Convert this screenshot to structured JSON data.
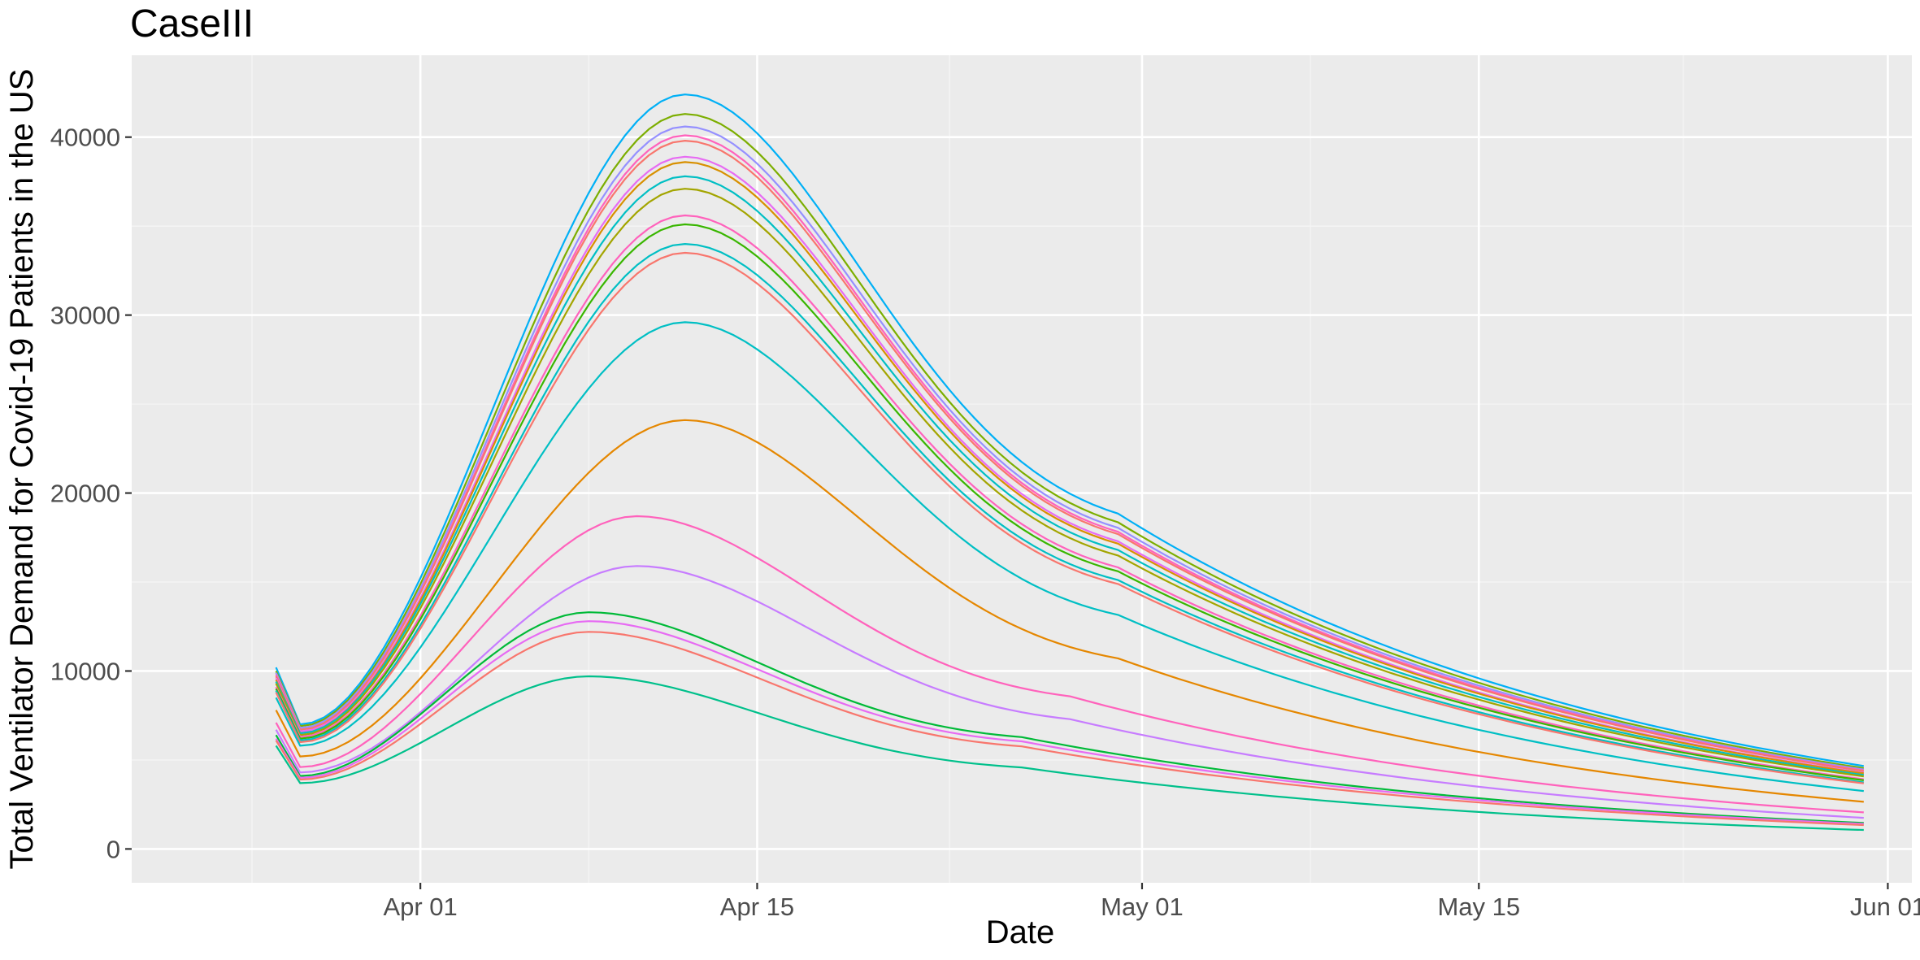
{
  "chart_data": {
    "type": "line",
    "title": "CaseIII",
    "xlabel": "Date",
    "ylabel": "Total Ventilator Demand for Covid-19 Patients in the US",
    "x_domain": [
      "2020-03-20",
      "2020-06-02"
    ],
    "ylim": [
      -1900,
      44600
    ],
    "x_ticks": [
      {
        "date": "2020-04-01",
        "label": "Apr 01"
      },
      {
        "date": "2020-04-15",
        "label": "Apr 15"
      },
      {
        "date": "2020-05-01",
        "label": "May 01"
      },
      {
        "date": "2020-05-15",
        "label": "May 15"
      },
      {
        "date": "2020-06-01",
        "label": "Jun 01"
      }
    ],
    "y_ticks": [
      0,
      10000,
      20000,
      30000,
      40000
    ],
    "grid": true,
    "legend": "none",
    "colors": {
      "panel_background": "#EBEBEB",
      "grid_major": "#FFFFFF",
      "grid_minor": "#F5F5F5",
      "axis_text": "#4D4D4D"
    },
    "series_style": "One line per scenario; 21 series, no legend.",
    "series": [
      {
        "color": "#00B0F6",
        "start": 10200,
        "dip": 7000,
        "peak": 42400
      },
      {
        "color": "#7CAE00",
        "start": 10000,
        "dip": 6900,
        "peak": 41300
      },
      {
        "color": "#9590FF",
        "start": 9900,
        "dip": 6800,
        "peak": 40600
      },
      {
        "color": "#FF62BC",
        "start": 9800,
        "dip": 6700,
        "peak": 40100
      },
      {
        "color": "#F8766D",
        "start": 9700,
        "dip": 6700,
        "peak": 39800
      },
      {
        "color": "#E76BF3",
        "start": 9600,
        "dip": 6600,
        "peak": 38900
      },
      {
        "color": "#D89000",
        "start": 9500,
        "dip": 6500,
        "peak": 38600
      },
      {
        "color": "#00BFC4",
        "start": 9400,
        "dip": 6500,
        "peak": 37800
      },
      {
        "color": "#A3A500",
        "start": 9300,
        "dip": 6400,
        "peak": 37100
      },
      {
        "color": "#FF62BC",
        "start": 9100,
        "dip": 6300,
        "peak": 35600
      },
      {
        "color": "#39B600",
        "start": 9000,
        "dip": 6200,
        "peak": 35100
      },
      {
        "color": "#00BFC4",
        "start": 8900,
        "dip": 6100,
        "peak": 34000
      },
      {
        "color": "#F8766D",
        "start": 8800,
        "dip": 6000,
        "peak": 33500
      },
      {
        "color": "#00BFC4",
        "start": 8500,
        "dip": 5800,
        "peak": 29600
      },
      {
        "color": "#E58700",
        "start": 7800,
        "dip": 5200,
        "peak": 24100
      },
      {
        "color": "#FF62BC",
        "start": 7100,
        "dip": 4600,
        "peak": 18700
      },
      {
        "color": "#C77CFF",
        "start": 6700,
        "dip": 4300,
        "peak": 15900
      },
      {
        "color": "#00BA38",
        "start": 6400,
        "dip": 4100,
        "peak": 13300
      },
      {
        "color": "#E76BF3",
        "start": 6200,
        "dip": 4000,
        "peak": 12800
      },
      {
        "color": "#F8766D",
        "start": 6100,
        "dip": 3900,
        "peak": 12200
      },
      {
        "color": "#00C08B",
        "start": 5800,
        "dip": 3700,
        "peak": 9700
      }
    ]
  }
}
